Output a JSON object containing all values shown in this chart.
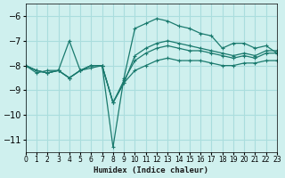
{
  "background_color": "#cff0ee",
  "grid_color": "#aadddd",
  "line_color": "#1a7a6e",
  "marker": "+",
  "xlabel": "Humidex (Indice chaleur)",
  "ylim": [
    -11.5,
    -5.5
  ],
  "xlim": [
    0,
    23
  ],
  "yticks": [
    -11,
    -10,
    -9,
    -8,
    -7,
    -6
  ],
  "xticks": [
    0,
    1,
    2,
    3,
    4,
    5,
    6,
    7,
    8,
    9,
    10,
    11,
    12,
    13,
    14,
    15,
    16,
    17,
    18,
    19,
    20,
    21,
    22,
    23
  ],
  "lines": [
    {
      "x": [
        0,
        1,
        2,
        3,
        4,
        5,
        6,
        7,
        8,
        9,
        10,
        11,
        12,
        13,
        14,
        15,
        16,
        17,
        18,
        19,
        20,
        21,
        22,
        23
      ],
      "y": [
        -8.0,
        -8.3,
        -8.2,
        -8.2,
        -7.0,
        -8.2,
        -8.0,
        -8.0,
        -11.3,
        -8.5,
        -6.5,
        -6.3,
        -6.1,
        -6.2,
        -6.4,
        -6.5,
        -6.7,
        -6.8,
        -7.3,
        -7.1,
        -7.1,
        -7.3,
        -7.2,
        -7.5
      ]
    },
    {
      "x": [
        0,
        1,
        2,
        3,
        4,
        5,
        6,
        7,
        8,
        9,
        10,
        11,
        12,
        13,
        14,
        15,
        16,
        17,
        18,
        19,
        20,
        21,
        22,
        23
      ],
      "y": [
        -8.0,
        -8.2,
        -8.3,
        -8.2,
        -8.5,
        -8.2,
        -8.1,
        -8.0,
        -9.5,
        -8.6,
        -7.8,
        -7.5,
        -7.3,
        -7.2,
        -7.3,
        -7.4,
        -7.4,
        -7.5,
        -7.6,
        -7.7,
        -7.6,
        -7.7,
        -7.5,
        -7.5
      ]
    },
    {
      "x": [
        0,
        1,
        2,
        3,
        4,
        5,
        6,
        7,
        8,
        9,
        10,
        11,
        12,
        13,
        14,
        15,
        16,
        17,
        18,
        19,
        20,
        21,
        22,
        23
      ],
      "y": [
        -8.0,
        -8.2,
        -8.3,
        -8.2,
        -8.5,
        -8.2,
        -8.0,
        -8.0,
        -9.5,
        -8.7,
        -7.6,
        -7.3,
        -7.1,
        -7.0,
        -7.1,
        -7.2,
        -7.3,
        -7.4,
        -7.5,
        -7.6,
        -7.5,
        -7.6,
        -7.4,
        -7.4
      ]
    },
    {
      "x": [
        0,
        1,
        2,
        3,
        4,
        5,
        6,
        7,
        8,
        9,
        10,
        11,
        12,
        13,
        14,
        15,
        16,
        17,
        18,
        19,
        20,
        21,
        22,
        23
      ],
      "y": [
        -8.0,
        -8.2,
        -8.3,
        -8.2,
        -8.5,
        -8.2,
        -8.0,
        -8.0,
        -9.5,
        -8.7,
        -8.2,
        -8.0,
        -7.8,
        -7.7,
        -7.8,
        -7.8,
        -7.8,
        -7.9,
        -8.0,
        -8.0,
        -7.9,
        -7.9,
        -7.8,
        -7.8
      ]
    }
  ]
}
